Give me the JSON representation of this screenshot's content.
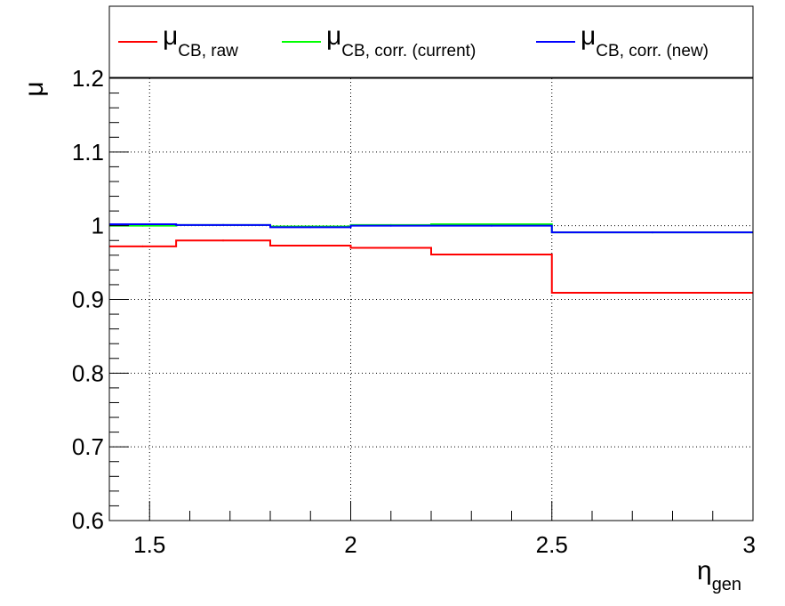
{
  "chart_data": {
    "type": "line",
    "xlabel": {
      "main": "η",
      "sub": "gen"
    },
    "ylabel": "μ",
    "xlim": [
      1.4,
      3.0
    ],
    "ylim": [
      0.6,
      1.2
    ],
    "x_ticks": [
      1.5,
      2.0,
      2.5,
      3.0
    ],
    "x_tick_labels": [
      "1.5",
      "2",
      "2.5",
      "3"
    ],
    "y_ticks": [
      0.6,
      0.7,
      0.8,
      0.9,
      1.0,
      1.1,
      1.2
    ],
    "y_tick_labels": [
      "0.6",
      "0.7",
      "0.8",
      "0.9",
      "1",
      "1.1",
      "1.2"
    ],
    "grid": true,
    "legend_position": "top",
    "bin_edges": [
      1.4,
      1.566,
      1.8,
      2.0,
      2.2,
      2.5,
      3.0
    ],
    "series": [
      {
        "name": "raw",
        "legend_main": "μ",
        "legend_sub": "CB, raw",
        "color": "#ff0000",
        "values": [
          0.972,
          0.98,
          0.973,
          0.97,
          0.961,
          0.909
        ]
      },
      {
        "name": "corr. (current)",
        "legend_main": "μ",
        "legend_sub": "CB, corr. (current)",
        "color": "#00ff00",
        "values": [
          1.0,
          1.001,
          0.999,
          1.001,
          1.002,
          0.991
        ]
      },
      {
        "name": "corr. (new)",
        "legend_main": "μ",
        "legend_sub": "CB, corr. (new)",
        "color": "#0000ff",
        "values": [
          1.002,
          1.001,
          0.998,
          1.0,
          1.0,
          0.991
        ]
      }
    ]
  }
}
